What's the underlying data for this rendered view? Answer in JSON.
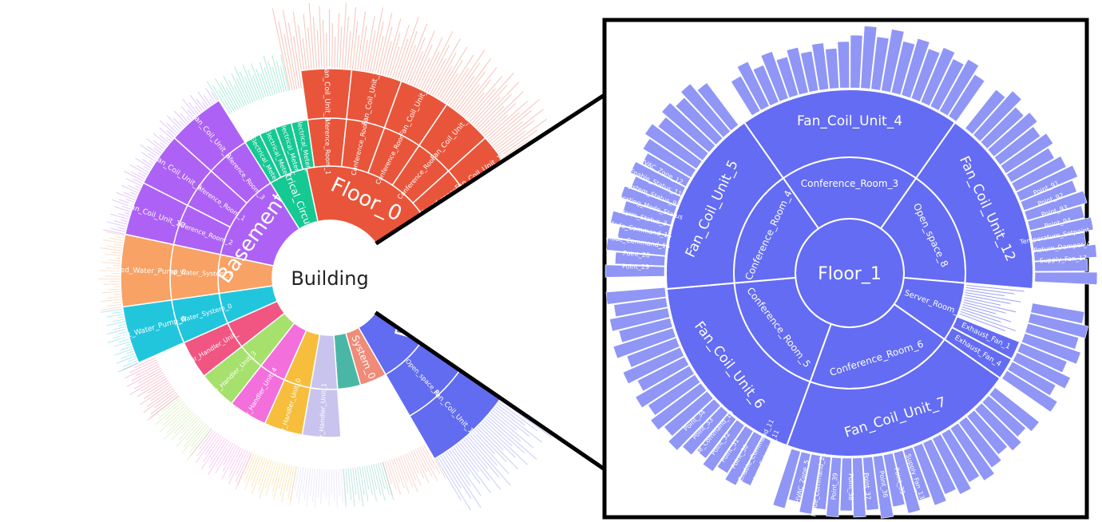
{
  "left_sunburst": {
    "center_label": "Building",
    "level1": [
      {
        "label": "Floor_0",
        "color": "#e9553a",
        "start": -12,
        "end": 62
      },
      {
        "label": "Floor_1",
        "color": "#626cf0",
        "start": 62,
        "end": 150
      },
      {
        "label": "System_0",
        "color": "#ef8b78",
        "start": 150,
        "end": 164
      },
      {
        "label": "",
        "color": "#4ab7a6",
        "start": 164,
        "end": 176
      },
      {
        "label": "",
        "color": "#c9c4ee",
        "start": 176,
        "end": 190
      },
      {
        "label": "",
        "color": "#f6be3c",
        "start": 190,
        "end": 204
      },
      {
        "label": "",
        "color": "#f36fdc",
        "start": 204,
        "end": 218
      },
      {
        "label": "",
        "color": "#a6e06d",
        "start": 218,
        "end": 232
      },
      {
        "label": "",
        "color": "#f15582",
        "start": 232,
        "end": 246
      },
      {
        "label": "",
        "color": "#21c6dd",
        "start": 246,
        "end": 262
      },
      {
        "label": "",
        "color": "#f8a265",
        "start": 262,
        "end": 282
      },
      {
        "label": "Basement_0",
        "color": "#ad62f5",
        "start": 282,
        "end": 328
      },
      {
        "label": "Electrical_Circuit_5",
        "color": "#16c892",
        "start": 328,
        "end": 348
      }
    ],
    "level2": [
      {
        "label": "Shared_space_0",
        "color": "#e9553a",
        "start": 48,
        "end": 62
      },
      {
        "label": "Conference_Room_",
        "color": "#e9553a",
        "start": 34,
        "end": 48
      },
      {
        "label": "Conference_Room_",
        "color": "#e9553a",
        "start": 20,
        "end": 34
      },
      {
        "label": "Conference_Room_",
        "color": "#e9553a",
        "start": 6,
        "end": 20
      },
      {
        "label": "Conference_Room_1",
        "color": "#e9553a",
        "start": -8,
        "end": 6
      },
      {
        "label": "Conference_Room_6",
        "color": "#626cf0",
        "start": 64,
        "end": 79
      },
      {
        "label": "Conference_Room_5",
        "color": "#626cf0",
        "start": 79,
        "end": 94
      },
      {
        "label": "Conference_Room_4",
        "color": "#626cf0",
        "start": 94,
        "end": 109
      },
      {
        "label": "Conference_Room_3",
        "color": "#626cf0",
        "start": 109,
        "end": 124
      },
      {
        "label": "Open_space_8",
        "color": "#626cf0",
        "start": 124,
        "end": 150
      },
      {
        "label": "Air_Handler_Unit_1",
        "color": "#c9c4ee",
        "start": 176,
        "end": 190
      },
      {
        "label": "Air_Handler_Unit_0",
        "color": "#f6be3c",
        "start": 190,
        "end": 204
      },
      {
        "label": "Air_Handler_Unit_4",
        "color": "#f36fdc",
        "start": 204,
        "end": 218
      },
      {
        "label": "Air_Handler_Unit_3",
        "color": "#a6e06d",
        "start": 218,
        "end": 232
      },
      {
        "label": "Air_Handler_Unit_",
        "color": "#f15582",
        "start": 232,
        "end": 246
      },
      {
        "label": "Hot_Water_System_0",
        "color": "#21c6dd",
        "start": 246,
        "end": 262
      },
      {
        "label": "Chilled_Water_System_0",
        "color": "#f8a265",
        "start": 262,
        "end": 282
      },
      {
        "label": "Conference_Room_2",
        "color": "#ad62f5",
        "start": 282,
        "end": 297
      },
      {
        "label": "Conference_Room_1",
        "color": "#ad62f5",
        "start": 297,
        "end": 312
      },
      {
        "label": "Conference_Room_3",
        "color": "#ad62f5",
        "start": 312,
        "end": 328
      },
      {
        "label": "Electrical_Meter",
        "color": "#16c892",
        "start": 328,
        "end": 334
      },
      {
        "label": "Electrical_Meter",
        "color": "#16c892",
        "start": 334,
        "end": 340
      },
      {
        "label": "Electrical_Meter_",
        "color": "#16c892",
        "start": 340,
        "end": 346
      },
      {
        "label": "Electrical_Meter_",
        "color": "#16c892",
        "start": 346,
        "end": 352
      }
    ],
    "level3": [
      {
        "label": "Fan_Coil_Unit_11",
        "color": "#e9553a",
        "start": 48,
        "end": 62
      },
      {
        "label": "Fan_Coil_Unit_0",
        "color": "#e9553a",
        "start": 34,
        "end": 48
      },
      {
        "label": "Fan_Coil_Unit_",
        "color": "#e9553a",
        "start": 20,
        "end": 34
      },
      {
        "label": "Fan_Coil_Unit_2",
        "color": "#e9553a",
        "start": 6,
        "end": 20
      },
      {
        "label": "Fan_Coil_Unit_3",
        "color": "#e9553a",
        "start": -8,
        "end": 6
      },
      {
        "label": "Exhaust_Fan_4",
        "color": "#626cf0",
        "start": 62,
        "end": 66
      },
      {
        "label": "Fan_Coil_Unit_7",
        "color": "#626cf0",
        "start": 66,
        "end": 80
      },
      {
        "label": "Fan_Coil_Unit_6",
        "color": "#626cf0",
        "start": 80,
        "end": 95
      },
      {
        "label": "Fan_Coil_Unit_5",
        "color": "#626cf0",
        "start": 95,
        "end": 110
      },
      {
        "label": "Fan_Coil_Unit_4",
        "color": "#626cf0",
        "start": 110,
        "end": 125
      },
      {
        "label": "Fan_Coil_Unit_12",
        "color": "#626cf0",
        "start": 125,
        "end": 150
      },
      {
        "label": "Hot_Water_Pump_0",
        "color": "#21c6dd",
        "start": 246,
        "end": 262
      },
      {
        "label": "Chilled_Water_Pump_0",
        "color": "#f8a265",
        "start": 262,
        "end": 282
      },
      {
        "label": "Fan_Coil_Unit_10",
        "color": "#ad62f5",
        "start": 282,
        "end": 297
      },
      {
        "label": "Fan_Coil_Unit_9",
        "color": "#ad62f5",
        "start": 297,
        "end": 312
      },
      {
        "label": "Fan_Coil_Unit_8",
        "color": "#ad62f5",
        "start": 312,
        "end": 328
      }
    ]
  },
  "right_sunburst": {
    "center_label": "Floor_1",
    "level1_color": "#636cf2",
    "level2": [
      {
        "label": "Conference_Room_3",
        "start": -35,
        "end": 35
      },
      {
        "label": "Open_space_8",
        "start": 35,
        "end": 95
      },
      {
        "label": "Server_Room_0",
        "start": 95,
        "end": 125
      },
      {
        "label": "Conference_Room_6",
        "start": 125,
        "end": 200
      },
      {
        "label": "Conference_Room_5",
        "start": 200,
        "end": 265
      },
      {
        "label": "Conference_Room_4",
        "start": 265,
        "end": 325
      }
    ],
    "level3": [
      {
        "label": "Fan_Coil_Unit_4",
        "start": -35,
        "end": 35
      },
      {
        "label": "Fan_Coil_Unit_12",
        "start": 35,
        "end": 95
      },
      {
        "label": "Exhaust_Fan_1",
        "start": 112,
        "end": 118
      },
      {
        "label": "Exhaust_Fan_4",
        "start": 118,
        "end": 125
      },
      {
        "label": "Fan_Coil_Unit_7",
        "start": 125,
        "end": 200
      },
      {
        "label": "Fan_Coil_Unit_6",
        "start": 200,
        "end": 265
      },
      {
        "label": "Fan_Coil_Unit_5",
        "start": 265,
        "end": 325
      }
    ],
    "point_labels_left": [
      "Supply_Fan_11",
      "Temperature_Setpoint_11",
      "System_Enable_Command_11",
      "Point_30",
      "Point_31",
      "Point_32",
      "Mode_Command_19",
      "Point_33",
      "Point_34"
    ],
    "point_labels_upper_left": [
      "Point_29",
      "Point_28",
      "Mode_Command_16",
      "Mode_Command_15",
      "Alarm_Status_3",
      "Operating_Mode_Status",
      "System_Status_9",
      "Enable_Status_11",
      "HVAC_Zone_12"
    ],
    "point_labels_right": [
      "Point_91",
      "Point_92",
      "Point_93",
      "Point_94",
      "Temperature_Setpoint_17",
      "Return_Damper_4",
      "Supply_Fan_17"
    ],
    "point_labels_bottom": [
      "Supply_Fan_13",
      "Point_35",
      "Point_36",
      "Point_37",
      "Point_38",
      "Point_39",
      "Mode_Command_21",
      "HVAC_Zone_5"
    ]
  }
}
